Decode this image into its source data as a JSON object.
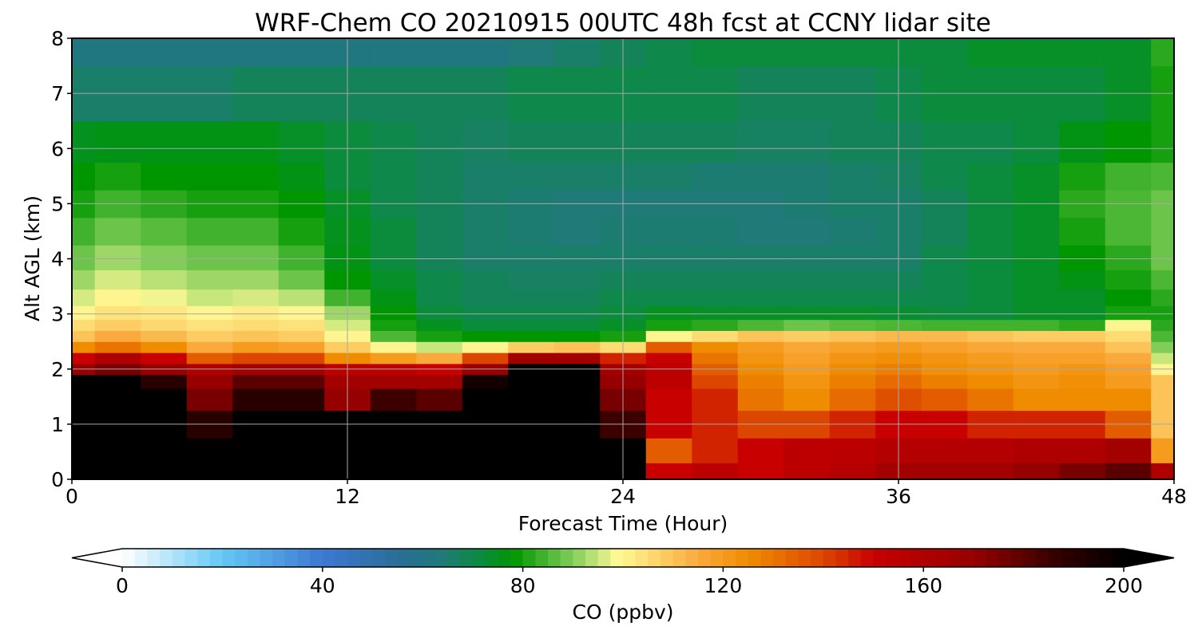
{
  "chart_data": {
    "type": "heatmap",
    "title": "WRF-Chem CO  20210915 00UTC 48h fcst at CCNY lidar site",
    "xlabel": "Forecast Time (Hour)",
    "ylabel": "Alt AGL (km)",
    "xlim": [
      0,
      48
    ],
    "ylim": [
      0,
      8
    ],
    "x_ticks": [
      0,
      12,
      24,
      36,
      48
    ],
    "y_ticks": [
      0,
      1,
      2,
      3,
      4,
      5,
      6,
      7,
      8
    ],
    "grid": true,
    "x": [
      0,
      2,
      4,
      6,
      8,
      10,
      12,
      14,
      16,
      18,
      20,
      22,
      24,
      26,
      28,
      30,
      32,
      34,
      36,
      38,
      40,
      42,
      44,
      46,
      48
    ],
    "y": [
      0.1,
      0.5,
      1.0,
      1.5,
      1.8,
      2.0,
      2.2,
      2.4,
      2.6,
      2.8,
      3.0,
      3.3,
      3.6,
      4.0,
      4.5,
      5.0,
      5.5,
      6.0,
      7.0,
      8.0
    ],
    "values": [
      [
        200,
        200,
        200,
        200,
        200,
        200,
        200,
        200,
        200,
        200,
        200,
        200,
        200,
        150,
        155,
        150,
        155,
        158,
        165,
        165,
        165,
        170,
        175,
        180,
        160
      ],
      [
        200,
        200,
        200,
        200,
        200,
        200,
        200,
        200,
        200,
        200,
        200,
        200,
        200,
        135,
        145,
        150,
        155,
        155,
        158,
        158,
        158,
        160,
        160,
        165,
        120
      ],
      [
        200,
        200,
        200,
        190,
        200,
        200,
        200,
        200,
        200,
        200,
        200,
        200,
        185,
        150,
        145,
        140,
        140,
        145,
        150,
        150,
        145,
        145,
        145,
        135,
        110
      ],
      [
        200,
        200,
        200,
        175,
        190,
        190,
        170,
        185,
        180,
        200,
        200,
        200,
        175,
        150,
        145,
        130,
        125,
        132,
        138,
        135,
        130,
        125,
        125,
        125,
        110
      ],
      [
        200,
        200,
        190,
        170,
        180,
        180,
        165,
        165,
        165,
        195,
        200,
        200,
        170,
        155,
        140,
        128,
        122,
        128,
        132,
        128,
        125,
        122,
        124,
        120,
        110
      ],
      [
        170,
        175,
        170,
        160,
        165,
        165,
        155,
        155,
        150,
        170,
        200,
        200,
        165,
        155,
        135,
        125,
        120,
        125,
        128,
        124,
        122,
        120,
        122,
        118,
        100
      ],
      [
        150,
        160,
        150,
        135,
        140,
        140,
        125,
        120,
        115,
        140,
        165,
        165,
        145,
        150,
        130,
        122,
        118,
        122,
        124,
        122,
        120,
        118,
        118,
        115,
        95
      ],
      [
        125,
        130,
        125,
        115,
        120,
        118,
        108,
        100,
        95,
        100,
        108,
        110,
        105,
        135,
        125,
        120,
        116,
        118,
        120,
        118,
        116,
        115,
        115,
        110,
        90
      ],
      [
        110,
        115,
        112,
        108,
        110,
        108,
        100,
        85,
        80,
        78,
        78,
        78,
        80,
        100,
        105,
        110,
        108,
        110,
        112,
        112,
        110,
        108,
        108,
        105,
        85
      ],
      [
        105,
        108,
        106,
        104,
        105,
        104,
        96,
        80,
        75,
        72,
        72,
        72,
        74,
        80,
        82,
        85,
        88,
        86,
        85,
        84,
        84,
        84,
        82,
        100,
        82
      ],
      [
        100,
        104,
        103,
        100,
        102,
        100,
        92,
        78,
        72,
        70,
        70,
        70,
        72,
        75,
        74,
        74,
        74,
        74,
        73,
        72,
        72,
        74,
        74,
        80,
        80
      ],
      [
        96,
        100,
        98,
        95,
        96,
        94,
        84,
        76,
        70,
        68,
        68,
        68,
        70,
        70,
        70,
        70,
        70,
        70,
        70,
        70,
        72,
        74,
        74,
        78,
        82
      ],
      [
        92,
        96,
        94,
        92,
        92,
        88,
        78,
        74,
        70,
        68,
        67,
        67,
        68,
        68,
        68,
        68,
        68,
        68,
        68,
        70,
        72,
        74,
        76,
        80,
        85
      ],
      [
        88,
        92,
        90,
        88,
        88,
        84,
        76,
        72,
        68,
        66,
        66,
        66,
        66,
        66,
        66,
        66,
        66,
        66,
        66,
        70,
        72,
        74,
        78,
        82,
        88
      ],
      [
        84,
        88,
        86,
        84,
        84,
        80,
        75,
        72,
        68,
        66,
        65,
        64,
        65,
        65,
        65,
        64,
        64,
        65,
        66,
        68,
        72,
        74,
        80,
        85,
        88
      ],
      [
        80,
        84,
        82,
        80,
        80,
        78,
        74,
        70,
        68,
        66,
        65,
        64,
        64,
        64,
        64,
        64,
        65,
        66,
        66,
        68,
        72,
        74,
        82,
        85,
        88
      ],
      [
        78,
        80,
        78,
        78,
        78,
        76,
        72,
        70,
        68,
        66,
        66,
        66,
        66,
        66,
        65,
        65,
        65,
        66,
        67,
        70,
        72,
        74,
        80,
        84,
        85
      ],
      [
        75,
        76,
        76,
        76,
        76,
        74,
        72,
        70,
        68,
        67,
        68,
        68,
        68,
        68,
        68,
        67,
        67,
        68,
        68,
        70,
        70,
        72,
        76,
        78,
        80
      ],
      [
        66,
        66,
        66,
        66,
        68,
        68,
        68,
        68,
        68,
        68,
        70,
        70,
        70,
        70,
        70,
        68,
        68,
        68,
        70,
        72,
        72,
        72,
        72,
        74,
        80
      ],
      [
        62,
        62,
        62,
        62,
        62,
        62,
        62,
        62,
        62,
        62,
        64,
        66,
        68,
        70,
        72,
        72,
        72,
        72,
        72,
        72,
        74,
        74,
        74,
        74,
        82
      ]
    ],
    "colorbar": {
      "label": "CO  (ppbv)",
      "min": 0,
      "max": 200,
      "ticks": [
        0,
        40,
        80,
        120,
        160,
        200
      ],
      "extend": "both",
      "colors": [
        {
          "v": 0,
          "c": "#ffffff"
        },
        {
          "v": 20,
          "c": "#64c8f5"
        },
        {
          "v": 40,
          "c": "#3c78d2"
        },
        {
          "v": 55,
          "c": "#2a6e96"
        },
        {
          "v": 64,
          "c": "#1f7a78"
        },
        {
          "v": 72,
          "c": "#0a8c3c"
        },
        {
          "v": 78,
          "c": "#009600"
        },
        {
          "v": 90,
          "c": "#82cd5a"
        },
        {
          "v": 99,
          "c": "#fffa96"
        },
        {
          "v": 115,
          "c": "#faaa3c"
        },
        {
          "v": 125,
          "c": "#f08c00"
        },
        {
          "v": 140,
          "c": "#dc4600"
        },
        {
          "v": 150,
          "c": "#c80000"
        },
        {
          "v": 170,
          "c": "#960000"
        },
        {
          "v": 185,
          "c": "#3c0000"
        },
        {
          "v": 200,
          "c": "#000000"
        }
      ]
    }
  }
}
